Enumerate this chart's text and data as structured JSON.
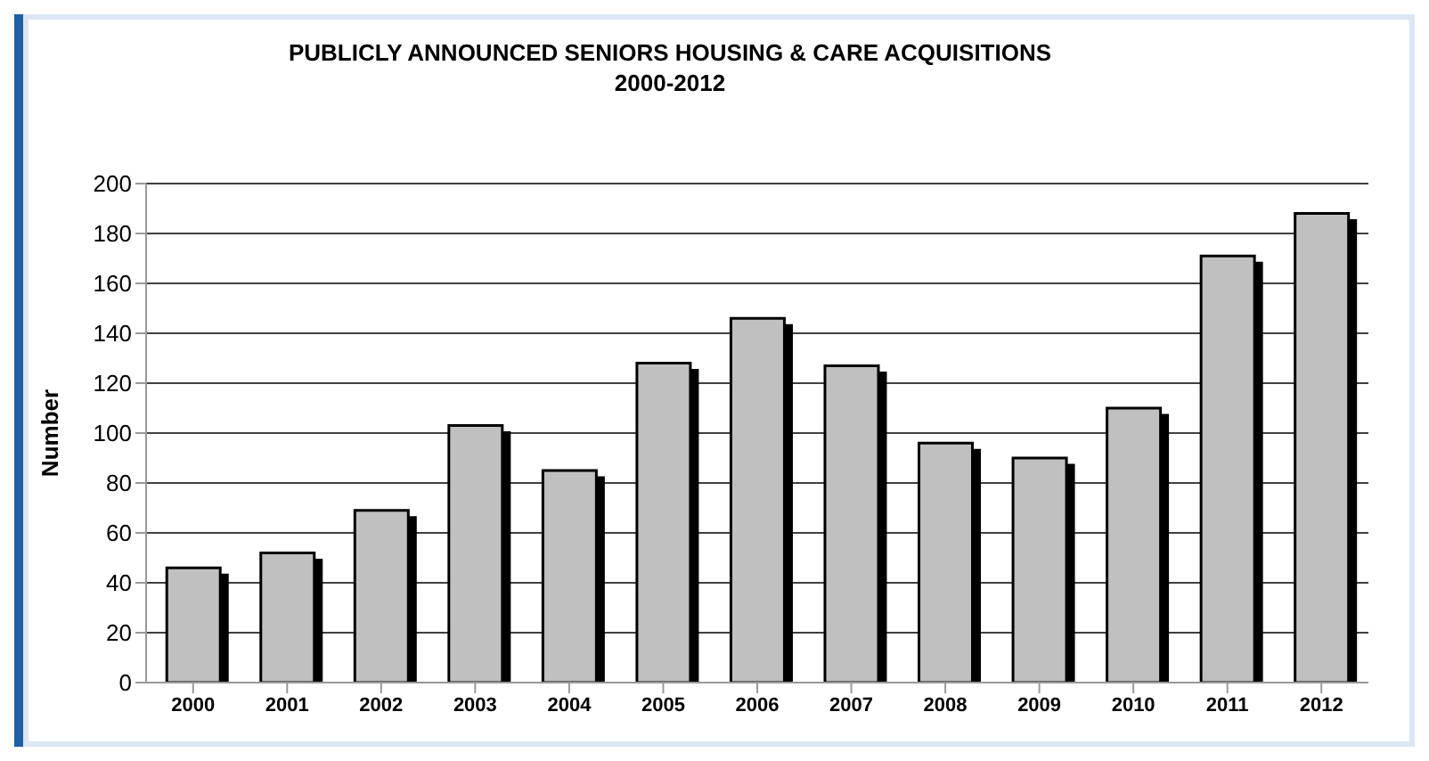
{
  "chart_data": {
    "type": "bar",
    "title": "PUBLICLY ANNOUNCED SENIORS HOUSING & CARE ACQUISITIONS",
    "subtitle": "2000-2012",
    "ylabel": "Number",
    "categories": [
      "2000",
      "2001",
      "2002",
      "2003",
      "2004",
      "2005",
      "2006",
      "2007",
      "2008",
      "2009",
      "2010",
      "2011",
      "2012"
    ],
    "values": [
      46,
      52,
      69,
      103,
      85,
      128,
      146,
      127,
      96,
      90,
      110,
      171,
      188
    ],
    "color": "#c0c0c0",
    "ylim": [
      0,
      200
    ],
    "yticks": [
      0,
      20,
      40,
      60,
      80,
      100,
      120,
      140,
      160,
      180,
      200
    ],
    "grid": "y",
    "legend": false
  }
}
